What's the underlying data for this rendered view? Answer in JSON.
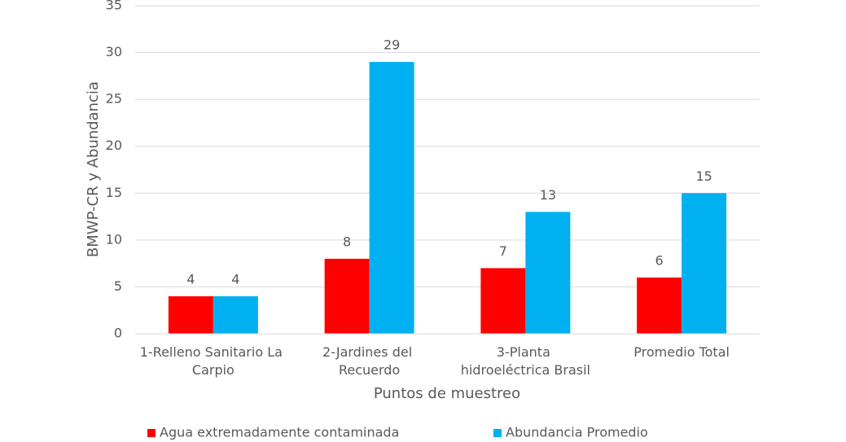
{
  "chart_data": {
    "type": "bar",
    "x_label": "Puntos de muestreo",
    "y_label": "BMWP-CR y Abundancia",
    "categories": [
      "1-Relleno Sanitario La Carpio",
      "2-Jardines del Recuerdo",
      "3-Planta hidroeléctrica Brasil",
      "Promedio Total"
    ],
    "series": [
      {
        "name": "Agua extremadamente contaminada",
        "color": "#ff0000",
        "values": [
          4,
          8,
          7,
          6
        ]
      },
      {
        "name": "Abundancia Promedio",
        "color": "#00b0f0",
        "values": [
          4,
          29,
          13,
          15
        ]
      }
    ],
    "ylim": [
      0,
      35
    ],
    "yticks": [
      0,
      5,
      10,
      15,
      20,
      25,
      30,
      35
    ],
    "grid": true,
    "legend": "bottom"
  }
}
